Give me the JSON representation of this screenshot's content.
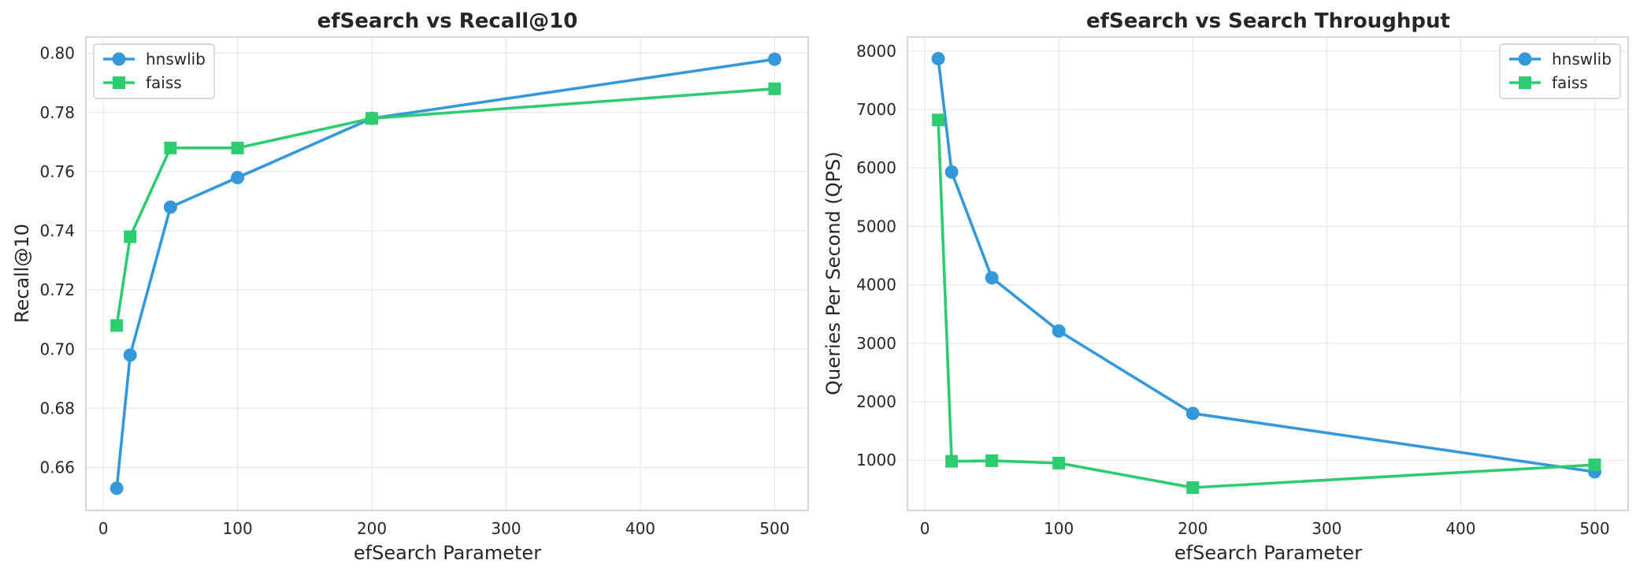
{
  "colors": {
    "hnswlib": "#3498db",
    "faiss": "#2ecc71"
  },
  "chart_data": [
    {
      "type": "line",
      "title": "efSearch vs Recall@10",
      "xlabel": "efSearch Parameter",
      "ylabel": "Recall@10",
      "xlim": [
        -13,
        525
      ],
      "ylim": [
        0.6455,
        0.8055
      ],
      "xticks": [
        0,
        100,
        200,
        300,
        400,
        500
      ],
      "yticks": [
        0.66,
        0.68,
        0.7,
        0.72,
        0.74,
        0.76,
        0.78,
        0.8
      ],
      "ytick_decimals": 2,
      "grid": true,
      "legend_position": "top-left",
      "x": [
        10,
        20,
        50,
        100,
        200,
        500
      ],
      "series": [
        {
          "name": "hnswlib",
          "marker": "circle",
          "values": [
            0.653,
            0.698,
            0.748,
            0.758,
            0.778,
            0.798
          ]
        },
        {
          "name": "faiss",
          "marker": "square",
          "values": [
            0.708,
            0.738,
            0.768,
            0.768,
            0.778,
            0.788
          ]
        }
      ]
    },
    {
      "type": "line",
      "title": "efSearch vs Search Throughput",
      "xlabel": "efSearch Parameter",
      "ylabel": "Queries Per Second (QPS)",
      "xlim": [
        -13,
        525
      ],
      "ylim": [
        140,
        8240
      ],
      "xticks": [
        0,
        100,
        200,
        300,
        400,
        500
      ],
      "yticks": [
        1000,
        2000,
        3000,
        4000,
        5000,
        6000,
        7000,
        8000
      ],
      "ytick_decimals": 0,
      "grid": true,
      "legend_position": "top-right",
      "x": [
        10,
        20,
        50,
        100,
        200,
        500
      ],
      "series": [
        {
          "name": "hnswlib",
          "marker": "circle",
          "values": [
            7870,
            5930,
            4120,
            3210,
            1800,
            800
          ]
        },
        {
          "name": "faiss",
          "marker": "square",
          "values": [
            6820,
            980,
            990,
            950,
            530,
            920
          ]
        }
      ]
    }
  ]
}
